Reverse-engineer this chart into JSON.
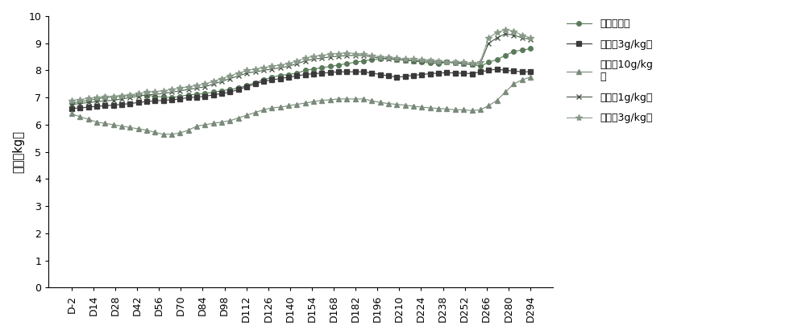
{
  "x_labels": [
    "D-2",
    "D14",
    "D28",
    "D42",
    "D56",
    "D70",
    "D84",
    "D98",
    "D112",
    "D126",
    "D140",
    "D154",
    "D168",
    "D182",
    "D196",
    "D210",
    "D224",
    "D238",
    "D252",
    "D266",
    "D280",
    "D294"
  ],
  "series": {
    "s1": [
      6.8,
      7.0,
      7.05,
      7.1,
      7.0,
      7.1,
      7.15,
      7.25,
      7.45,
      7.65,
      7.85,
      8.05,
      8.25,
      8.35,
      8.4,
      8.35,
      8.25,
      8.3,
      8.25,
      8.15,
      8.45,
      8.75
    ],
    "s2": [
      6.6,
      6.65,
      6.75,
      6.85,
      6.85,
      6.95,
      7.05,
      7.15,
      7.35,
      7.55,
      7.75,
      7.85,
      7.95,
      7.95,
      7.95,
      7.75,
      7.8,
      7.85,
      7.85,
      7.95,
      8.05,
      7.95
    ],
    "s3": [
      6.4,
      6.1,
      5.95,
      5.8,
      5.65,
      5.95,
      6.05,
      6.15,
      6.45,
      6.65,
      6.75,
      6.95,
      6.95,
      6.95,
      6.85,
      6.75,
      6.65,
      6.6,
      6.55,
      6.55,
      7.45,
      7.75
    ],
    "s4": [
      6.75,
      6.85,
      6.95,
      7.05,
      6.95,
      7.15,
      7.25,
      7.45,
      7.75,
      7.95,
      8.15,
      8.35,
      8.55,
      8.55,
      8.45,
      8.4,
      8.35,
      8.35,
      8.3,
      8.25,
      9.35,
      9.15
    ],
    "s5": [
      6.9,
      7.0,
      7.1,
      7.2,
      7.1,
      7.2,
      7.3,
      7.5,
      7.8,
      8.0,
      8.2,
      8.4,
      8.6,
      8.6,
      8.5,
      8.45,
      8.4,
      8.4,
      8.35,
      8.3,
      9.5,
      9.2
    ]
  },
  "dense_series": {
    "s1_dense": [
      6.8,
      6.85,
      6.9,
      6.95,
      7.0,
      7.02,
      7.05,
      7.07,
      7.1,
      7.08,
      7.05,
      7.02,
      7.0,
      7.05,
      7.1,
      7.12,
      7.15,
      7.2,
      7.25,
      7.3,
      7.35,
      7.45,
      7.55,
      7.65,
      7.75,
      7.82,
      7.85,
      7.9,
      8.0,
      8.05,
      8.1,
      8.15,
      8.2,
      8.25,
      8.3,
      8.35,
      8.4,
      8.42,
      8.45,
      8.4,
      8.38,
      8.35,
      8.3,
      8.28,
      8.25,
      8.3,
      8.28,
      8.25,
      8.22,
      8.15,
      8.3,
      8.4,
      8.55,
      8.7,
      8.75,
      8.8
    ],
    "s2_dense": [
      6.6,
      6.62,
      6.65,
      6.68,
      6.7,
      6.72,
      6.75,
      6.78,
      6.82,
      6.85,
      6.88,
      6.9,
      6.92,
      6.95,
      7.0,
      7.02,
      7.05,
      7.1,
      7.15,
      7.2,
      7.3,
      7.4,
      7.5,
      7.6,
      7.65,
      7.7,
      7.75,
      7.8,
      7.85,
      7.88,
      7.9,
      7.92,
      7.95,
      7.95,
      7.95,
      7.95,
      7.9,
      7.85,
      7.8,
      7.75,
      7.78,
      7.82,
      7.85,
      7.88,
      7.9,
      7.92,
      7.9,
      7.9,
      7.88,
      7.95,
      8.0,
      8.05,
      8.0,
      7.98,
      7.95,
      7.95
    ],
    "s3_dense": [
      6.4,
      6.3,
      6.2,
      6.1,
      6.05,
      6.0,
      5.95,
      5.9,
      5.85,
      5.8,
      5.72,
      5.65,
      5.65,
      5.7,
      5.8,
      5.95,
      6.0,
      6.05,
      6.1,
      6.15,
      6.25,
      6.35,
      6.45,
      6.55,
      6.62,
      6.65,
      6.7,
      6.75,
      6.8,
      6.85,
      6.9,
      6.92,
      6.95,
      6.95,
      6.95,
      6.95,
      6.88,
      6.82,
      6.78,
      6.75,
      6.72,
      6.68,
      6.65,
      6.62,
      6.6,
      6.58,
      6.55,
      6.55,
      6.52,
      6.55,
      6.7,
      6.9,
      7.2,
      7.5,
      7.65,
      7.75
    ],
    "s4_dense": [
      6.75,
      6.78,
      6.82,
      6.85,
      6.88,
      6.9,
      6.95,
      7.0,
      7.05,
      7.1,
      7.12,
      7.15,
      7.2,
      7.25,
      7.3,
      7.35,
      7.4,
      7.5,
      7.6,
      7.7,
      7.8,
      7.9,
      7.95,
      8.0,
      8.05,
      8.1,
      8.15,
      8.25,
      8.35,
      8.42,
      8.45,
      8.5,
      8.52,
      8.55,
      8.55,
      8.55,
      8.5,
      8.45,
      8.42,
      8.4,
      8.38,
      8.35,
      8.35,
      8.33,
      8.3,
      8.3,
      8.28,
      8.25,
      8.22,
      8.25,
      9.0,
      9.2,
      9.35,
      9.3,
      9.2,
      9.15
    ],
    "s5_dense": [
      6.9,
      6.93,
      6.97,
      7.0,
      7.03,
      7.05,
      7.08,
      7.1,
      7.15,
      7.2,
      7.22,
      7.25,
      7.3,
      7.35,
      7.4,
      7.45,
      7.5,
      7.6,
      7.7,
      7.8,
      7.9,
      8.0,
      8.05,
      8.1,
      8.15,
      8.2,
      8.25,
      8.35,
      8.45,
      8.52,
      8.55,
      8.6,
      8.62,
      8.65,
      8.62,
      8.6,
      8.55,
      8.5,
      8.48,
      8.45,
      8.43,
      8.42,
      8.4,
      8.38,
      8.35,
      8.32,
      8.3,
      8.3,
      8.28,
      8.3,
      9.2,
      9.4,
      9.5,
      9.45,
      9.3,
      9.2
    ]
  },
  "colors": {
    "s1": "#5a7a5a",
    "s2": "#3a3a3a",
    "s3": "#7a8a7a",
    "s4": "#4a5a4a",
    "s5": "#8a9a8a"
  },
  "markers": {
    "s1": "o",
    "s2": "s",
    "s3": "^",
    "s4": "x",
    "s5": "*"
  },
  "ylabel": "体重（kg）",
  "ylim": [
    0,
    10
  ],
  "yticks": [
    0,
    1,
    2,
    3,
    4,
    5,
    6,
    7,
    8,
    9,
    10
  ],
  "legend_labels": [
    "阴性对照组",
    "原工艺3g/kg组",
    "原工艺10g/kg\n组",
    "新工艺1g/kg组",
    "新工艺3g/kg组"
  ]
}
